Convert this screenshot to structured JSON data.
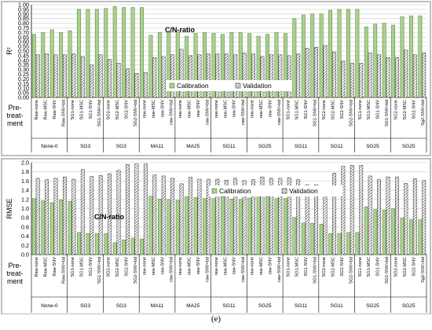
{
  "figure": {
    "caption": "(e)"
  },
  "treatments": [
    {
      "group": "None-0",
      "labels": [
        "Raw-none",
        "Raw-MSC",
        "Raw-SNV",
        "Raw-SNV+bd"
      ]
    },
    {
      "group": "SG3",
      "labels": [
        "SG1-none",
        "SG1-MSC",
        "SG1-SNV",
        "SG1-SNV+bd"
      ]
    },
    {
      "group": "SG3",
      "labels": [
        "SG2-none",
        "SG2-MSC",
        "SG2-SNV",
        "SG2-SNV+bd"
      ]
    },
    {
      "group": "MA11",
      "labels": [
        "raw-none",
        "raw-MSC",
        "raw-SNV",
        "raw-SNV+bd"
      ]
    },
    {
      "group": "MA25",
      "labels": [
        "raw-none",
        "raw-MSC",
        "raw-SNV",
        "raw-SNV+bd"
      ]
    },
    {
      "group": "SG11",
      "labels": [
        "raw-none",
        "raw-MSC",
        "raw-SNV",
        "raw-SNV+bd"
      ]
    },
    {
      "group": "SG25",
      "labels": [
        "raw-none",
        "raw-MSC",
        "raw-SNV",
        "raw-SNV+bd"
      ]
    },
    {
      "group": "SG11",
      "labels": [
        "SG1-none",
        "SG1-MSC",
        "SG1-SNV",
        "SG1-SNV+bd"
      ]
    },
    {
      "group": "SG11",
      "labels": [
        "SG2-none",
        "SG2-MSC",
        "SG2-SNV",
        "SG2-SNV+bd"
      ]
    },
    {
      "group": "SG25",
      "labels": [
        "SG1-none",
        "SG1-MSC",
        "SG1-SNV",
        "SG1-SNV+bd"
      ]
    },
    {
      "group": "SG25",
      "labels": [
        "SG2-none",
        "SG2-MSC",
        "SG2-SNV",
        "Sg2-SNV+bd"
      ]
    }
  ],
  "colors": {
    "calibration": "#a9d18e",
    "calibration_edge": "#4e7a32",
    "validation_edge": "#333333",
    "panel_border": "#7f7f7f",
    "grid": "#d9d9d9"
  },
  "chart_data": [
    {
      "type": "bar",
      "title": "C/N-ratio",
      "ylabel": "R²",
      "row_label": "Pre-\ntreat-\nment",
      "ylim": [
        0,
        1
      ],
      "yticks": [
        "0.00",
        "0.05",
        "0.10",
        "0.15",
        "0.20",
        "0.25",
        "0.30",
        "0.35",
        "0.40",
        "0.45",
        "0.50",
        "0.55",
        "0.60",
        "0.65",
        "0.70",
        "0.75",
        "0.80",
        "0.85",
        "0.90",
        "0.95",
        "1.00"
      ],
      "legend_position": "center-right",
      "series": [
        {
          "name": "Calibration",
          "values": [
            0.68,
            0.7,
            0.73,
            0.7,
            0.72,
            0.95,
            0.95,
            0.95,
            0.96,
            0.98,
            0.97,
            0.97,
            0.97,
            0.67,
            0.7,
            0.7,
            0.71,
            0.66,
            0.69,
            0.7,
            0.69,
            0.68,
            0.7,
            0.7,
            0.69,
            0.66,
            0.68,
            0.7,
            0.69,
            0.85,
            0.89,
            0.9,
            0.9,
            0.94,
            0.95,
            0.95,
            0.95,
            0.76,
            0.79,
            0.8,
            0.78,
            0.87,
            0.88,
            0.88,
            0.88
          ]
        },
        {
          "name": "Validation",
          "values": [
            0.46,
            0.47,
            0.46,
            0.46,
            0.47,
            0.44,
            0.35,
            0.46,
            0.41,
            0.37,
            0.31,
            0.26,
            0.27,
            0.43,
            0.44,
            0.46,
            0.52,
            0.45,
            0.46,
            0.47,
            0.47,
            0.47,
            0.46,
            0.48,
            0.47,
            0.44,
            0.46,
            0.46,
            0.45,
            0.47,
            0.53,
            0.54,
            0.56,
            0.49,
            0.39,
            0.37,
            0.37,
            0.48,
            0.46,
            0.43,
            0.43,
            0.51,
            0.46,
            0.48,
            0.42
          ]
        }
      ]
    },
    {
      "type": "bar",
      "title": "C/N-ratio",
      "ylabel": "RMSE",
      "row_label": "Pre-\ntreat-\nment",
      "ylim": [
        0,
        2
      ],
      "yticks": [
        "0.0",
        "0.2",
        "0.4",
        "0.6",
        "0.8",
        "1.0",
        "1.2",
        "1.4",
        "1.6",
        "1.8",
        "2.0"
      ],
      "legend_position": "top-right",
      "series": [
        {
          "name": "Calibration",
          "values": [
            1.22,
            1.17,
            1.13,
            1.19,
            1.16,
            0.48,
            0.46,
            0.46,
            0.46,
            0.26,
            0.32,
            0.36,
            0.34,
            1.27,
            1.21,
            1.2,
            1.18,
            1.26,
            1.24,
            1.22,
            1.22,
            1.26,
            1.21,
            1.2,
            1.23,
            1.3,
            1.26,
            1.22,
            1.22,
            0.81,
            0.69,
            0.68,
            0.66,
            0.46,
            0.46,
            0.48,
            0.48,
            1.04,
            0.98,
            0.97,
            1.0,
            0.79,
            0.76,
            0.76,
            0.77
          ]
        },
        {
          "name": "Validation",
          "values": [
            1.66,
            1.63,
            1.66,
            1.69,
            1.64,
            1.85,
            1.7,
            1.72,
            1.76,
            1.83,
            1.96,
            1.97,
            1.97,
            1.73,
            1.71,
            1.66,
            1.54,
            1.68,
            1.64,
            1.64,
            1.64,
            1.62,
            1.66,
            1.61,
            1.63,
            1.69,
            1.66,
            1.66,
            1.67,
            1.63,
            1.52,
            1.52,
            1.5,
            1.77,
            1.92,
            1.94,
            1.94,
            1.71,
            1.63,
            1.69,
            1.69,
            1.55,
            1.65,
            1.61,
            1.71
          ]
        }
      ]
    }
  ]
}
